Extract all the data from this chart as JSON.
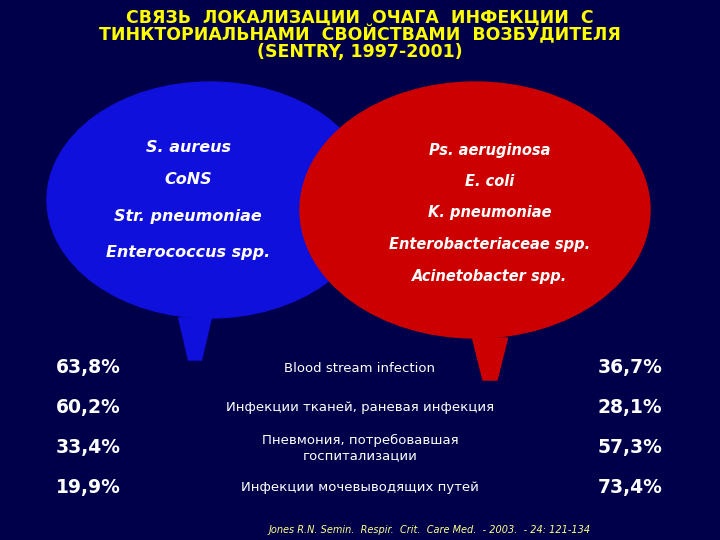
{
  "title_line1": "СВЯЗЬ  ЛОКАЛИЗАЦИИ  ОЧАГА  ИНФЕКЦИИ  С",
  "title_line2": "ТИНКТОРИАЛЬНАМИ  СВОЙСТВАМИ  ВОЗБУДИТЕЛЯ",
  "title_line3": "(SENTRY, 1997-2001)",
  "title_color": "#FFFF00",
  "background_color": "#00004A",
  "blue_bubble_items": [
    "S. aureus",
    "CoNS",
    "Str. pneumoniae",
    "Enterococcus spp."
  ],
  "red_bubble_items": [
    "Ps. aeruginosa",
    "E. coli",
    "K. pneumoniae",
    "Enterobacteriaceae spp.",
    "Acinetobacter spp."
  ],
  "bubble_text_color": "#FFFFFF",
  "blue_color": "#1010DD",
  "red_color": "#CC0000",
  "table_rows": [
    {
      "left_val": "63,8%",
      "center": "Blood stream infection",
      "right_val": "36,7%"
    },
    {
      "left_val": "60,2%",
      "center": "Инфекции тканей, раневая инфекция",
      "right_val": "28,1%"
    },
    {
      "left_val": "33,4%",
      "center": "Пневмония, потребовавшая\nгоспитализации",
      "right_val": "57,3%"
    },
    {
      "left_val": "19,9%",
      "center": "Инфекции мочевыводящих путей",
      "right_val": "73,4%"
    }
  ],
  "left_val_color": "#FFFFFF",
  "right_val_color": "#FFFFFF",
  "center_color": "#FFFFFF",
  "footnote": "Jones R.N. Semin.  Respir.  Crit.  Care Med.  - 2003.  - 24: 121-134",
  "footnote_color": "#FFFF88"
}
